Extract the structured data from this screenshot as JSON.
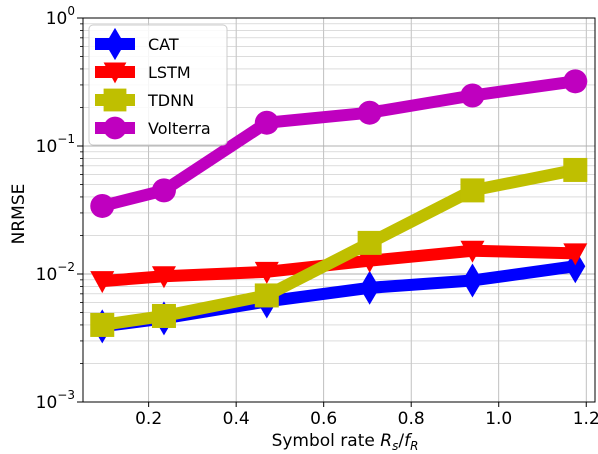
{
  "chart_data": {
    "type": "line",
    "xlabel_prefix": "Symbol rate ",
    "xlabel_math": {
      "R": "R",
      "R_sub": "s",
      "f": "f",
      "f_sub": "R",
      "slash": "/"
    },
    "ylabel": "NRMSE",
    "xlim": [
      0.05,
      1.22
    ],
    "ylim": [
      0.001,
      1
    ],
    "y_scale": "log",
    "grid": true,
    "legend_position": "top-left",
    "x_ticks": [
      0.2,
      0.4,
      0.6,
      0.8,
      1.0,
      1.2
    ],
    "x_tick_labels": [
      "0.2",
      "0.4",
      "0.6",
      "0.8",
      "1.0",
      "1.2"
    ],
    "y_ticks": [
      {
        "value": 0.001,
        "base": "10",
        "exp": "−3"
      },
      {
        "value": 0.01,
        "base": "10",
        "exp": "−2"
      },
      {
        "value": 0.1,
        "base": "10",
        "exp": "−1"
      },
      {
        "value": 1,
        "base": "10",
        "exp": "0"
      }
    ],
    "x": [
      0.094,
      0.235,
      0.47,
      0.705,
      0.94,
      1.175
    ],
    "series": [
      {
        "name": "CAT",
        "color": "#0000ff",
        "marker": "diamond",
        "values": [
          0.0039,
          0.0045,
          0.0061,
          0.0078,
          0.0089,
          0.0115
        ]
      },
      {
        "name": "LSTM",
        "color": "#ff0000",
        "marker": "triangle-down",
        "values": [
          0.0088,
          0.0096,
          0.0104,
          0.0127,
          0.0152,
          0.0145
        ]
      },
      {
        "name": "TDNN",
        "color": "#bfbf00",
        "marker": "square",
        "values": [
          0.004,
          0.0047,
          0.0068,
          0.0175,
          0.045,
          0.065
        ]
      },
      {
        "name": "Volterra",
        "color": "#bf00bf",
        "marker": "circle",
        "values": [
          0.034,
          0.045,
          0.152,
          0.182,
          0.248,
          0.32
        ]
      }
    ]
  }
}
